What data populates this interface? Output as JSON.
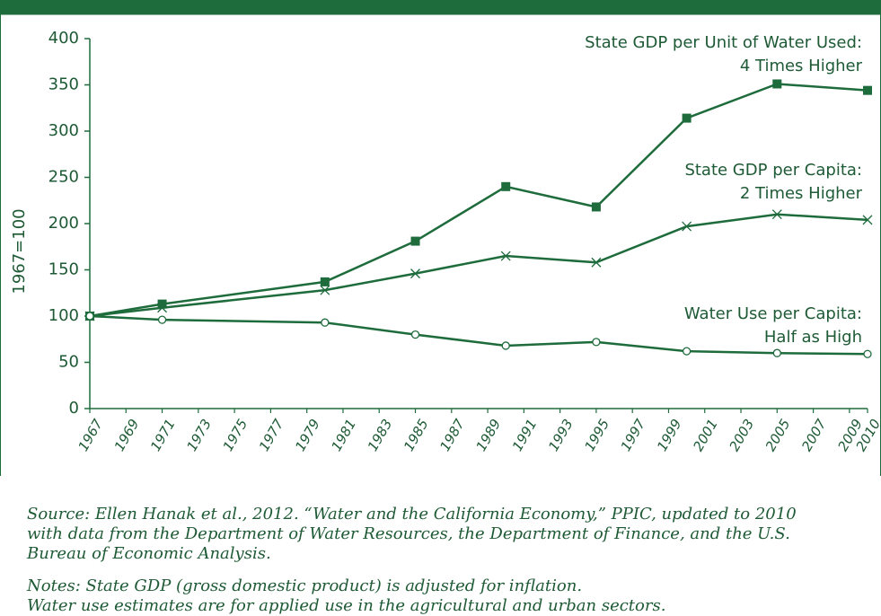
{
  "chart_data": {
    "type": "line",
    "ylabel": "1967=100",
    "x": [
      1967,
      1971,
      1980,
      1985,
      1990,
      1995,
      2000,
      2005,
      2010
    ],
    "series": [
      {
        "name": "State GDP per Unit of Water Used",
        "color": "#1e6b3c",
        "marker": "square",
        "values": [
          100,
          113,
          137,
          181,
          240,
          218,
          314,
          351,
          344
        ]
      },
      {
        "name": "State GDP per Capita",
        "color": "#1e6b3c",
        "marker": "x",
        "values": [
          100,
          109,
          128,
          146,
          165,
          158,
          197,
          210,
          204
        ]
      },
      {
        "name": "Water Use per Capita",
        "color": "#1e6b3c",
        "marker": "circle",
        "values": [
          100,
          96,
          93,
          80,
          68,
          72,
          62,
          60,
          59
        ]
      }
    ],
    "annotations": [
      {
        "lines": [
          "State GDP per Unit of Water Used:",
          "4 Times Higher"
        ]
      },
      {
        "lines": [
          "State GDP per Capita:",
          "2 Times Higher"
        ]
      },
      {
        "lines": [
          "Water Use per Capita:",
          "Half as High"
        ]
      }
    ],
    "xlim": [
      1967,
      2010
    ],
    "xticks": [
      1967,
      1969,
      1971,
      1973,
      1975,
      1977,
      1979,
      1981,
      1983,
      1985,
      1987,
      1989,
      1991,
      1993,
      1995,
      1997,
      1999,
      2001,
      2003,
      2005,
      2007,
      2009,
      2010
    ],
    "ylim": [
      0,
      400
    ],
    "yticks": [
      0,
      50,
      100,
      150,
      200,
      250,
      300,
      350,
      400
    ]
  },
  "footer": {
    "source": [
      "Source: Ellen Hanak et al., 2012. “Water and the California Economy,” PPIC, updated to 2010",
      "with data from the Department of Water Resources, the Department of Finance, and the U.S.",
      "Bureau of Economic Analysis."
    ],
    "notes": [
      "Notes: State GDP (gross domestic product) is adjusted for inflation.",
      "Water use estimates are for applied use in the agricultural and urban sectors."
    ]
  }
}
